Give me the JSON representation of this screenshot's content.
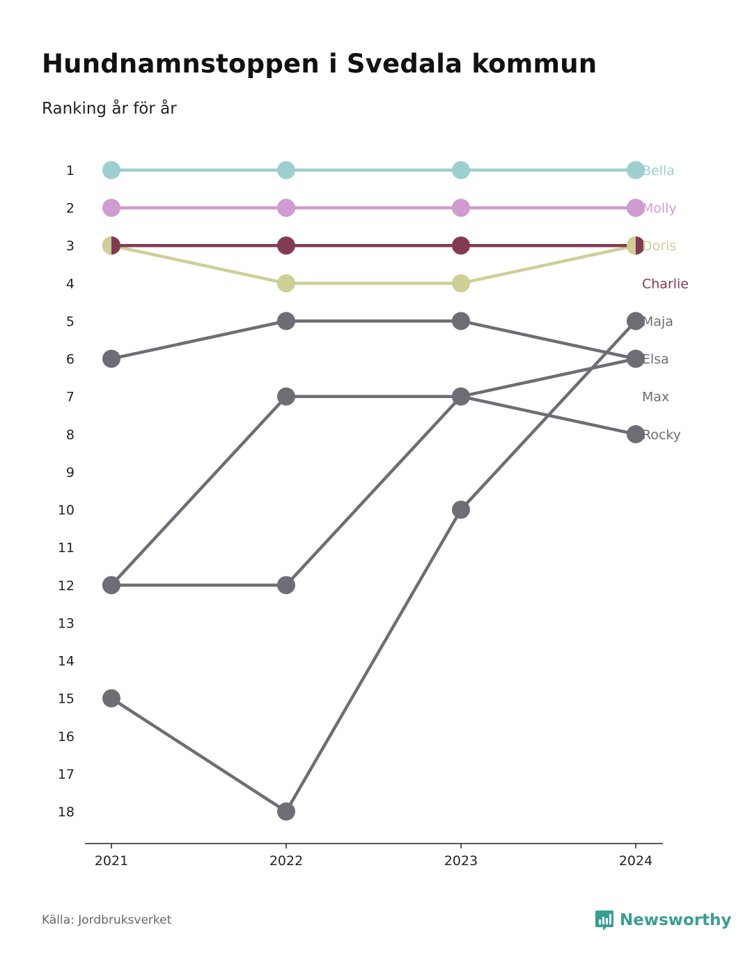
{
  "header": {
    "title": "Hundnamnstoppen i Svedala kommun",
    "subtitle": "Ranking år för år"
  },
  "footer": {
    "source": "Källa: Jordbruksverket",
    "brand": "Newsworthy",
    "brand_color": "#3a9e91",
    "brand_icon": "chart-bubble-icon"
  },
  "chart_data": {
    "type": "line",
    "x": [
      "2021",
      "2022",
      "2023",
      "2024"
    ],
    "y_ticks": [
      "1",
      "2",
      "3",
      "4",
      "5",
      "6",
      "7",
      "8",
      "9",
      "10",
      "11",
      "12",
      "13",
      "14",
      "15",
      "16",
      "17",
      "18"
    ],
    "ylim": [
      1,
      18
    ],
    "y_inverted": true,
    "grid": false,
    "colors": {
      "Bella": "#9dcfcf",
      "Molly": "#cf9bd0",
      "Doris": "#cece97",
      "Charlie": "#813b52",
      "other": "#6e6d75"
    },
    "series": [
      {
        "name": "Bella",
        "values": [
          1,
          1,
          1,
          1
        ]
      },
      {
        "name": "Molly",
        "values": [
          2,
          2,
          2,
          2
        ]
      },
      {
        "name": "Doris",
        "values": [
          3,
          4,
          4,
          3
        ]
      },
      {
        "name": "Charlie",
        "values": [
          3,
          3,
          3,
          3
        ]
      },
      {
        "name": "Maja",
        "values": [
          15,
          18,
          10,
          5
        ]
      },
      {
        "name": "Elsa",
        "values": [
          6,
          5,
          5,
          6
        ]
      },
      {
        "name": "Max",
        "values": [
          12,
          12,
          7,
          6
        ]
      },
      {
        "name": "Rocky",
        "values": [
          12,
          7,
          7,
          8
        ]
      }
    ],
    "end_labels": [
      {
        "name": "Bella",
        "rank": 1
      },
      {
        "name": "Molly",
        "rank": 2
      },
      {
        "name": "Doris",
        "rank": 3
      },
      {
        "name": "Charlie",
        "rank": 4
      },
      {
        "name": "Maja",
        "rank": 5
      },
      {
        "name": "Elsa",
        "rank": 6
      },
      {
        "name": "Max",
        "rank": 7
      },
      {
        "name": "Rocky",
        "rank": 8
      }
    ]
  }
}
